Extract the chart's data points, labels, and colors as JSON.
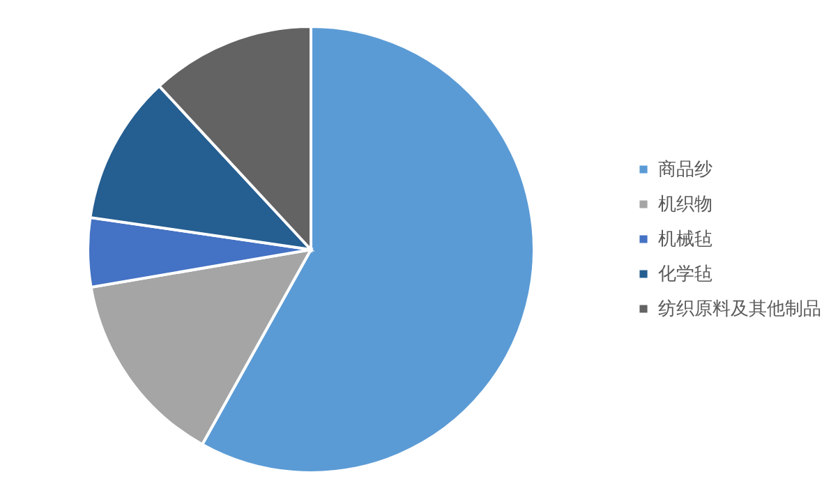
{
  "chart_data": {
    "type": "pie",
    "categories": [
      "商品纱",
      "机织物",
      "机械毡",
      "化学毡",
      "纺织原料及其他制品"
    ],
    "values": [
      58.1,
      14.2,
      5.0,
      10.8,
      11.9
    ],
    "colors": [
      "#5b9bd5",
      "#a5a5a5",
      "#4472c4",
      "#255e91",
      "#636363"
    ],
    "legend": "right"
  }
}
